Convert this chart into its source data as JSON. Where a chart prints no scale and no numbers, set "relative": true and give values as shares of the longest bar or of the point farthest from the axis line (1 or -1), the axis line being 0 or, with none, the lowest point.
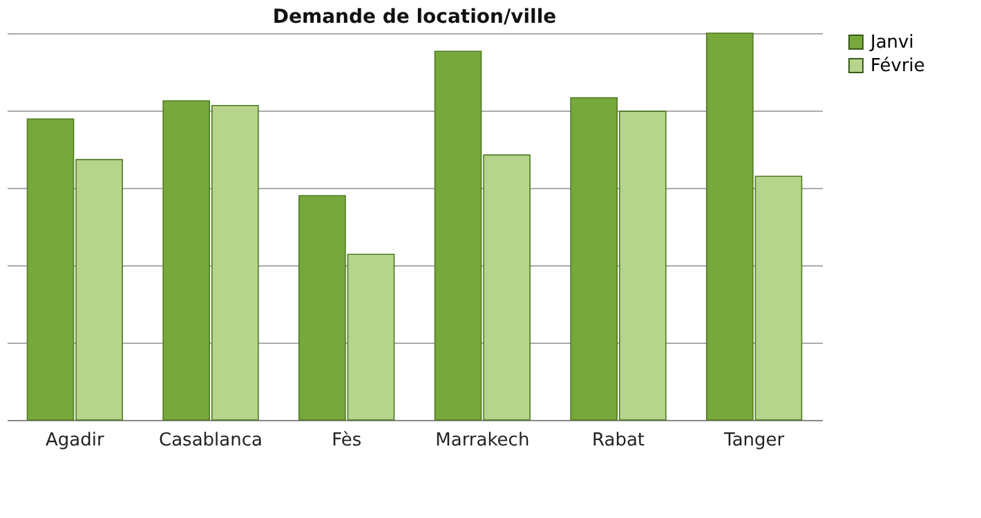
{
  "chart_data": {
    "type": "bar",
    "title": "Demande de location/ville",
    "relative": true,
    "grid": "y",
    "legend": "right",
    "categories": [
      "Agadir",
      "Casablanca",
      "Fès",
      "Marrakech",
      "Rabat",
      "Tanger"
    ],
    "series": [
      {
        "name": "Janvi",
        "color": "#77a83c",
        "values": [
          0.778,
          0.825,
          0.58,
          0.953,
          0.833,
          1
        ]
      },
      {
        "name": "Févrie",
        "color": "#b6d48c",
        "values": [
          0.673,
          0.813,
          0.428,
          0.685,
          0.798,
          0.63
        ]
      }
    ]
  }
}
